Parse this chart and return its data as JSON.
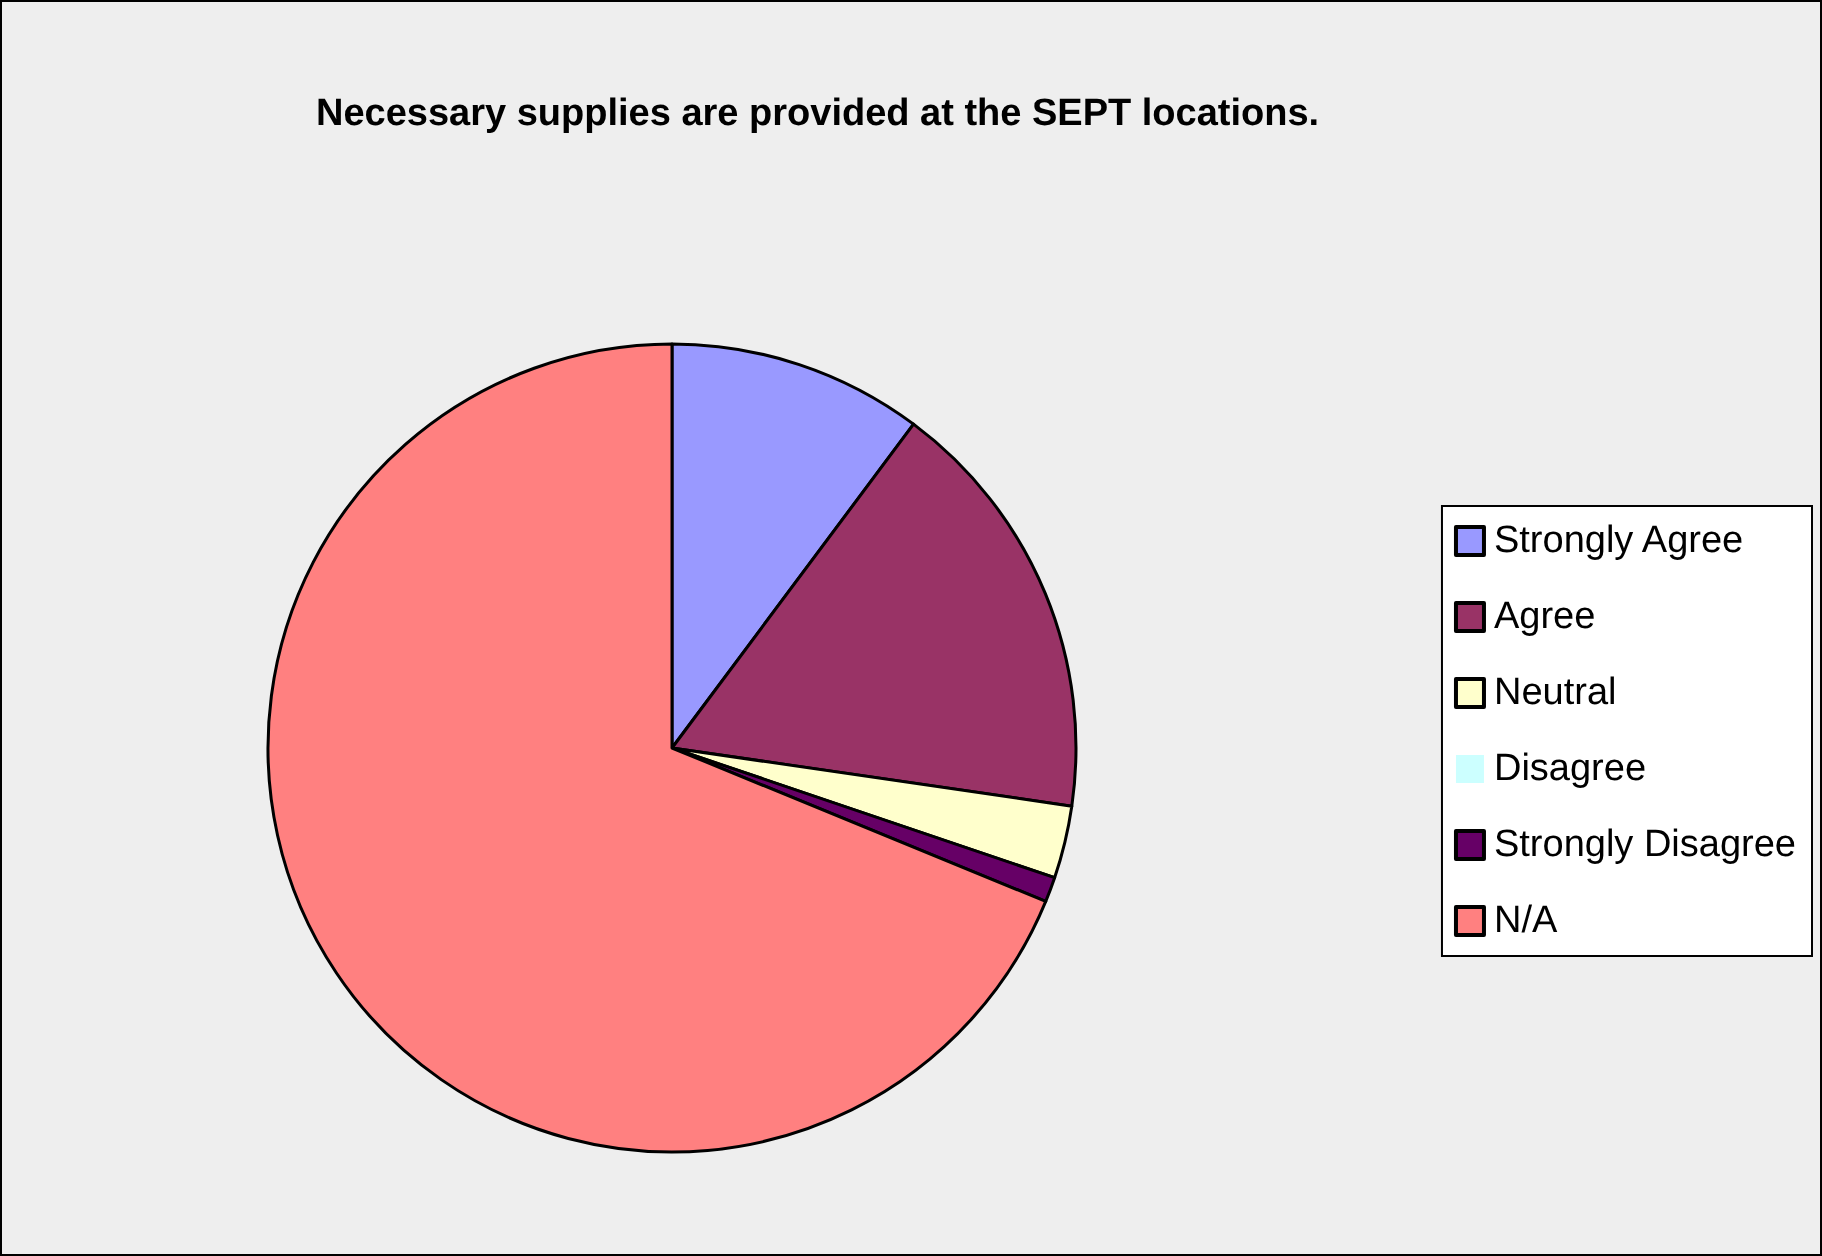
{
  "chart_data": {
    "type": "pie",
    "title": "Necessary supplies are provided at the SEPT locations.",
    "categories": [
      "Strongly Agree",
      "Agree",
      "Neutral",
      "Disagree",
      "Strongly Disagree",
      "N/A"
    ],
    "values": [
      10.2,
      17.1,
      2.9,
      0,
      1.0,
      68.8
    ],
    "colors": [
      "#9999ff",
      "#993366",
      "#ffffcc",
      "#ccffff",
      "#660066",
      "#ff8080"
    ],
    "legend": "right"
  }
}
